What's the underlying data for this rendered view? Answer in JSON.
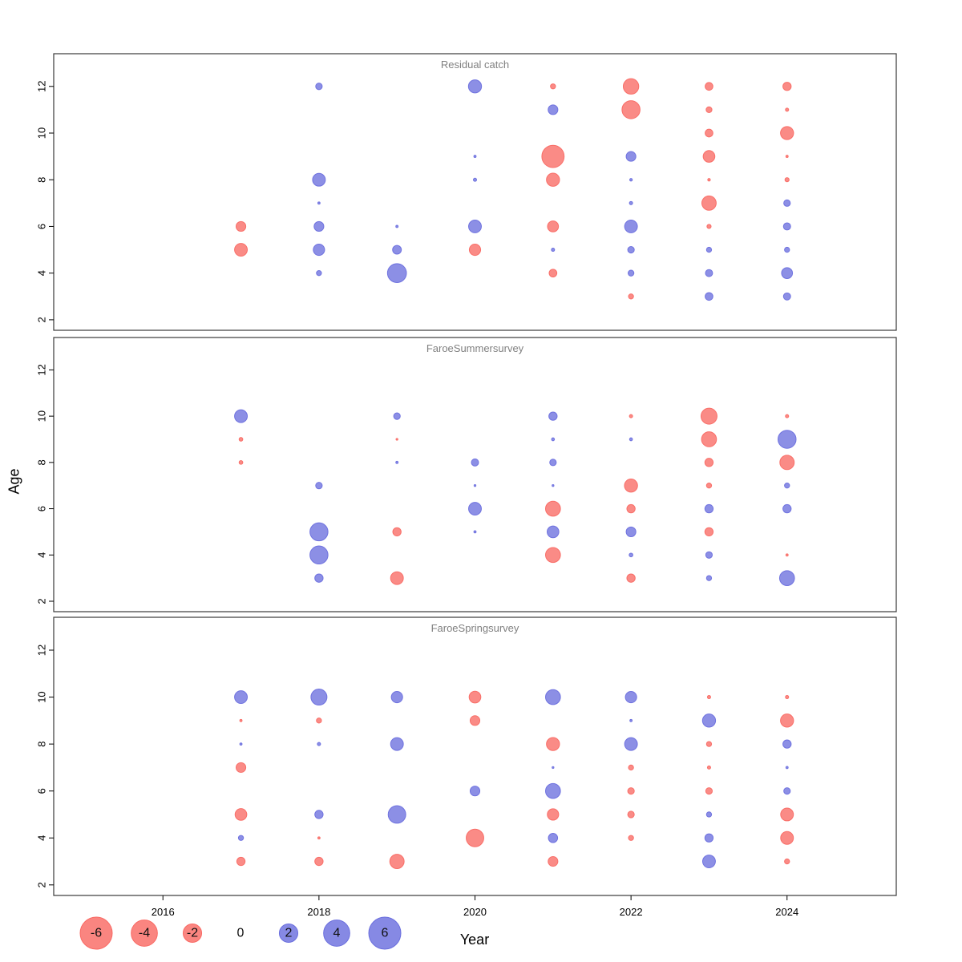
{
  "axis": {
    "x_label": "Year",
    "y_label": "Age"
  },
  "colors": {
    "negative": "#F96A64",
    "positive": "#6B6FDE"
  },
  "legend": {
    "values": [
      -6,
      -4,
      -2,
      0,
      2,
      4,
      6
    ]
  },
  "chart_data": {
    "type": "scatter",
    "subtype": "residual-bubble-plot",
    "title": "",
    "xlabel": "Year",
    "ylabel": "Age",
    "x_ticks": [
      2016,
      2018,
      2020,
      2022,
      2024
    ],
    "y_ticks": [
      2,
      4,
      6,
      8,
      10,
      12
    ],
    "xlim": [
      2014.6,
      2025.4
    ],
    "ylim": [
      1.55,
      13.4
    ],
    "grid": false,
    "legend_position": "bottom",
    "value_note": "bubble area encodes residual magnitude; red = negative, blue = positive",
    "panels": [
      {
        "title": "Residual catch",
        "points": [
          [
            2017,
            6,
            -0.55
          ],
          [
            2017,
            5,
            -0.95
          ],
          [
            2018,
            12,
            0.25
          ],
          [
            2018,
            8,
            0.95
          ],
          [
            2018,
            7,
            0.03
          ],
          [
            2018,
            6,
            0.55
          ],
          [
            2018,
            5,
            0.75
          ],
          [
            2018,
            4,
            0.15
          ],
          [
            2019,
            6,
            0.03
          ],
          [
            2019,
            5,
            0.45
          ],
          [
            2019,
            4,
            2.1
          ],
          [
            2020,
            12,
            1.0
          ],
          [
            2020,
            9,
            0.03
          ],
          [
            2020,
            8,
            0.06
          ],
          [
            2020,
            6,
            0.95
          ],
          [
            2020,
            5,
            -0.75
          ],
          [
            2021,
            12,
            -0.15
          ],
          [
            2021,
            11,
            0.55
          ],
          [
            2021,
            9,
            -2.9
          ],
          [
            2021,
            8,
            -1.0
          ],
          [
            2021,
            6,
            -0.7
          ],
          [
            2021,
            5,
            0.06
          ],
          [
            2021,
            4,
            -0.35
          ],
          [
            2022,
            12,
            -1.4
          ],
          [
            2022,
            11,
            -1.9
          ],
          [
            2022,
            9,
            0.55
          ],
          [
            2022,
            8,
            0.04
          ],
          [
            2022,
            7,
            0.06
          ],
          [
            2022,
            6,
            0.95
          ],
          [
            2022,
            5,
            0.25
          ],
          [
            2022,
            4,
            0.2
          ],
          [
            2022,
            3,
            -0.15
          ],
          [
            2023,
            12,
            -0.35
          ],
          [
            2023,
            11,
            -0.2
          ],
          [
            2023,
            10,
            -0.35
          ],
          [
            2023,
            9,
            -0.8
          ],
          [
            2023,
            8,
            -0.04
          ],
          [
            2023,
            7,
            -1.2
          ],
          [
            2023,
            6,
            -0.1
          ],
          [
            2023,
            5,
            0.15
          ],
          [
            2023,
            4,
            0.3
          ],
          [
            2023,
            3,
            0.35
          ],
          [
            2024,
            12,
            -0.4
          ],
          [
            2024,
            11,
            -0.06
          ],
          [
            2024,
            10,
            -1.0
          ],
          [
            2024,
            9,
            -0.03
          ],
          [
            2024,
            8,
            -0.1
          ],
          [
            2024,
            7,
            0.25
          ],
          [
            2024,
            6,
            0.3
          ],
          [
            2024,
            5,
            0.15
          ],
          [
            2024,
            4,
            0.7
          ],
          [
            2024,
            3,
            0.3
          ]
        ]
      },
      {
        "title": "FaroeSummersurvey",
        "points": [
          [
            2017,
            10,
            0.95
          ],
          [
            2017,
            9,
            -0.08
          ],
          [
            2017,
            8,
            -0.08
          ],
          [
            2018,
            7,
            0.25
          ],
          [
            2018,
            5,
            1.9
          ],
          [
            2018,
            4,
            1.9
          ],
          [
            2018,
            3,
            0.4
          ],
          [
            2019,
            10,
            0.25
          ],
          [
            2019,
            9,
            -0.02
          ],
          [
            2019,
            8,
            0.03
          ],
          [
            2019,
            5,
            -0.4
          ],
          [
            2019,
            3,
            -0.95
          ],
          [
            2020,
            8,
            0.3
          ],
          [
            2020,
            7,
            0.02
          ],
          [
            2020,
            6,
            0.95
          ],
          [
            2020,
            5,
            0.03
          ],
          [
            2021,
            10,
            0.4
          ],
          [
            2021,
            9,
            0.05
          ],
          [
            2021,
            8,
            0.25
          ],
          [
            2021,
            7,
            0.02
          ],
          [
            2021,
            6,
            -1.3
          ],
          [
            2021,
            5,
            0.8
          ],
          [
            2021,
            4,
            -1.3
          ],
          [
            2022,
            10,
            -0.06
          ],
          [
            2022,
            9,
            0.05
          ],
          [
            2022,
            7,
            -1.0
          ],
          [
            2022,
            6,
            -0.4
          ],
          [
            2022,
            5,
            0.55
          ],
          [
            2022,
            4,
            0.08
          ],
          [
            2022,
            3,
            -0.4
          ],
          [
            2023,
            10,
            -1.5
          ],
          [
            2023,
            9,
            -1.3
          ],
          [
            2023,
            8,
            -0.4
          ],
          [
            2023,
            7,
            -0.15
          ],
          [
            2023,
            6,
            0.4
          ],
          [
            2023,
            5,
            -0.4
          ],
          [
            2023,
            4,
            0.25
          ],
          [
            2023,
            3,
            0.15
          ],
          [
            2024,
            10,
            -0.06
          ],
          [
            2024,
            9,
            1.9
          ],
          [
            2024,
            8,
            -1.2
          ],
          [
            2024,
            7,
            0.15
          ],
          [
            2024,
            6,
            0.4
          ],
          [
            2024,
            4,
            -0.03
          ],
          [
            2024,
            3,
            1.3
          ]
        ]
      },
      {
        "title": "FaroeSpringsurvey",
        "points": [
          [
            2017,
            10,
            0.95
          ],
          [
            2017,
            9,
            -0.03
          ],
          [
            2017,
            8,
            0.03
          ],
          [
            2017,
            7,
            -0.55
          ],
          [
            2017,
            5,
            -0.8
          ],
          [
            2017,
            4,
            0.15
          ],
          [
            2017,
            3,
            -0.4
          ],
          [
            2018,
            10,
            1.5
          ],
          [
            2018,
            9,
            -0.15
          ],
          [
            2018,
            8,
            0.06
          ],
          [
            2018,
            5,
            0.4
          ],
          [
            2018,
            4,
            -0.03
          ],
          [
            2018,
            3,
            -0.4
          ],
          [
            2019,
            10,
            0.75
          ],
          [
            2019,
            8,
            0.95
          ],
          [
            2019,
            5,
            1.8
          ],
          [
            2019,
            3,
            -1.2
          ],
          [
            2020,
            10,
            -0.8
          ],
          [
            2020,
            9,
            -0.55
          ],
          [
            2020,
            6,
            0.55
          ],
          [
            2020,
            4,
            -1.8
          ],
          [
            2021,
            10,
            1.3
          ],
          [
            2021,
            8,
            -1.0
          ],
          [
            2021,
            7,
            0.02
          ],
          [
            2021,
            6,
            1.3
          ],
          [
            2021,
            5,
            -0.75
          ],
          [
            2021,
            4,
            0.5
          ],
          [
            2021,
            3,
            -0.55
          ],
          [
            2022,
            10,
            0.75
          ],
          [
            2022,
            9,
            0.03
          ],
          [
            2022,
            8,
            0.95
          ],
          [
            2022,
            7,
            -0.15
          ],
          [
            2022,
            6,
            -0.25
          ],
          [
            2022,
            5,
            -0.25
          ],
          [
            2022,
            4,
            -0.15
          ],
          [
            2023,
            10,
            -0.06
          ],
          [
            2023,
            9,
            1.0
          ],
          [
            2023,
            8,
            -0.15
          ],
          [
            2023,
            7,
            -0.06
          ],
          [
            2023,
            6,
            -0.25
          ],
          [
            2023,
            5,
            0.15
          ],
          [
            2023,
            4,
            0.4
          ],
          [
            2023,
            3,
            0.95
          ],
          [
            2024,
            10,
            -0.06
          ],
          [
            2024,
            9,
            -1.0
          ],
          [
            2024,
            8,
            0.4
          ],
          [
            2024,
            7,
            0.03
          ],
          [
            2024,
            6,
            0.25
          ],
          [
            2024,
            5,
            -0.95
          ],
          [
            2024,
            4,
            -0.95
          ],
          [
            2024,
            3,
            -0.15
          ]
        ]
      }
    ]
  }
}
